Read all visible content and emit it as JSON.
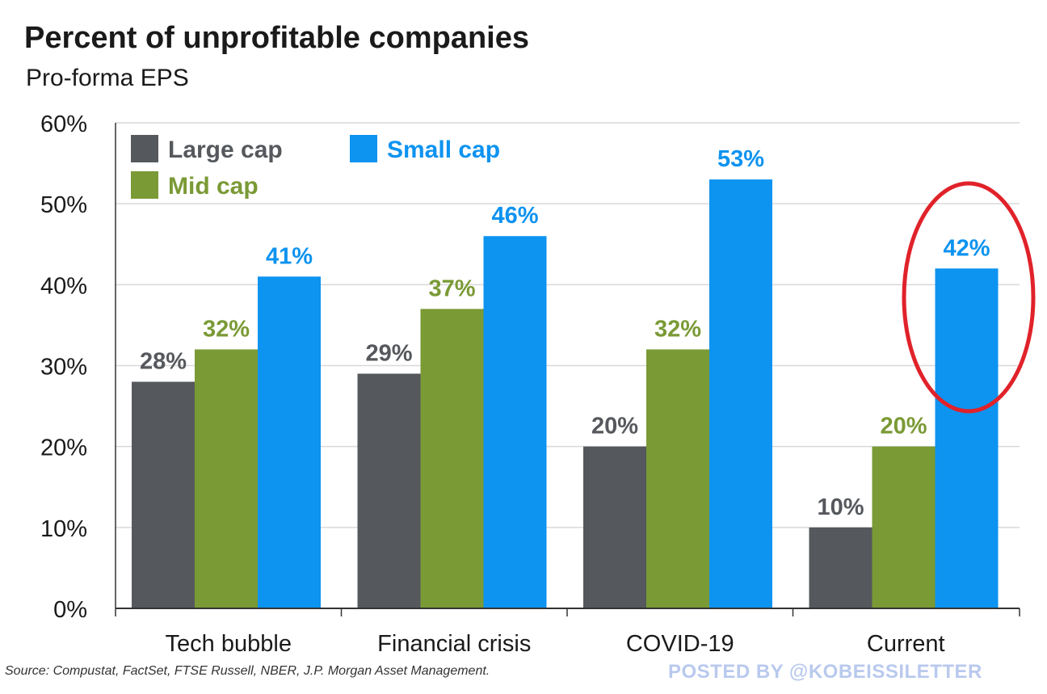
{
  "title": "Percent of unprofitable companies",
  "subtitle": "Pro-forma EPS",
  "source": "Source: Compustat, FactSet, FTSE Russell, NBER, J.P. Morgan Asset Management.",
  "watermark": "POSTED BY @KOBEISSILETTER",
  "colors": {
    "large_cap": "#55585c",
    "mid_cap": "#7a9a35",
    "small_cap": "#0d93f0",
    "highlight_circle": "#e0222a",
    "gridline": "#d9d9d9",
    "axis": "#333333"
  },
  "chart_data": {
    "type": "bar",
    "categories": [
      "Tech bubble",
      "Financial crisis",
      "COVID-19",
      "Current"
    ],
    "series": [
      {
        "name": "Large cap",
        "values": [
          28,
          29,
          20,
          10
        ],
        "labels": [
          "28%",
          "29%",
          "20%",
          "10%"
        ]
      },
      {
        "name": "Mid cap",
        "values": [
          32,
          37,
          32,
          20
        ],
        "labels": [
          "32%",
          "37%",
          "32%",
          "20%"
        ]
      },
      {
        "name": "Small cap",
        "values": [
          41,
          46,
          53,
          42
        ],
        "labels": [
          "41%",
          "46%",
          "53%",
          "42%"
        ]
      }
    ],
    "yticks": [
      "0%",
      "10%",
      "20%",
      "30%",
      "40%",
      "50%",
      "60%"
    ],
    "ylim": [
      0,
      60
    ],
    "grid": true,
    "legend_position": "top-left",
    "highlight": {
      "category": "Current",
      "series": "Small cap",
      "shape": "ellipse"
    }
  }
}
